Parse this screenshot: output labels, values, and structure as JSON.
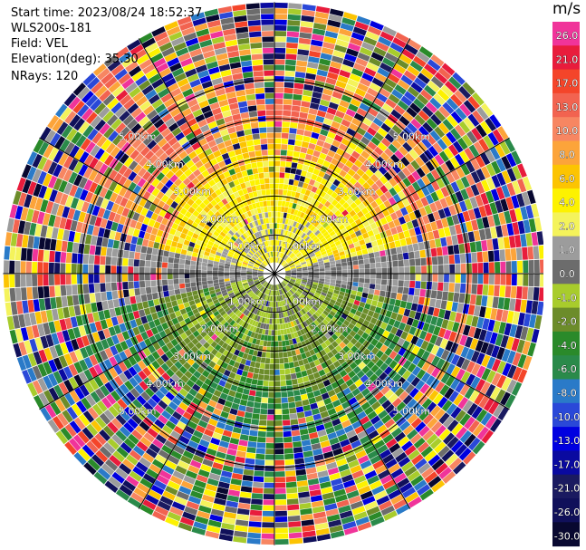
{
  "header": {
    "start_time": "Start time: 2023/08/24 18:52:37",
    "instrument": "WLS200s-181",
    "field": "Field: VEL",
    "elevation": "Elevation(deg): 35.30",
    "nrays": "NRays: 120"
  },
  "colorbar": {
    "unit": "m/s",
    "ticks": [
      "26.0",
      "21.0",
      "17.0",
      "13.0",
      "10.0",
      "8.0",
      "6.0",
      "4.0",
      "2.0",
      "1.0",
      "0.0",
      "-1.0",
      "-2.0",
      "-4.0",
      "-6.0",
      "-8.0",
      "-10.0",
      "-13.0",
      "-17.0",
      "-21.0",
      "-26.0",
      "-30.0"
    ],
    "colors": [
      "#f0349a",
      "#e81c3c",
      "#f4452a",
      "#f26350",
      "#f78662",
      "#fca43a",
      "#fcc402",
      "#fdf200",
      "#f4f35b",
      "#9c9c9c",
      "#6c6c6c",
      "#a8cc2c",
      "#6c8c2a",
      "#2a8a2a",
      "#2a8a4a",
      "#2a7ac8",
      "#2a48d8",
      "#0000e0",
      "#0a0aa0",
      "#1a1a60",
      "#10105a",
      "#080830"
    ]
  },
  "chart_data": {
    "type": "heatmap",
    "projection": "polar (PPI)",
    "field": "VEL",
    "units": "m/s",
    "nrays": 120,
    "elevation_deg": 35.3,
    "range_rings_km": [
      1.0,
      2.0,
      3.0,
      4.0,
      5.0
    ],
    "ring_labels": [
      "1.00km",
      "2.00km",
      "3.00km",
      "4.00km",
      "5.00km"
    ],
    "azimuth_spokes_deg": [
      0,
      30,
      60,
      90,
      120,
      150,
      180,
      210,
      240,
      270,
      300,
      330
    ],
    "max_range_km": 7.0,
    "velocity_pattern": {
      "north_sector": "positive (2 to 10 m/s, increasing with range)",
      "south_sector": "negative (-1 to -6 m/s)",
      "east_west_near": "near zero (0 to 1 m/s)",
      "outer_ranges": "noisy, full scale (-30 to 26 m/s)"
    }
  }
}
